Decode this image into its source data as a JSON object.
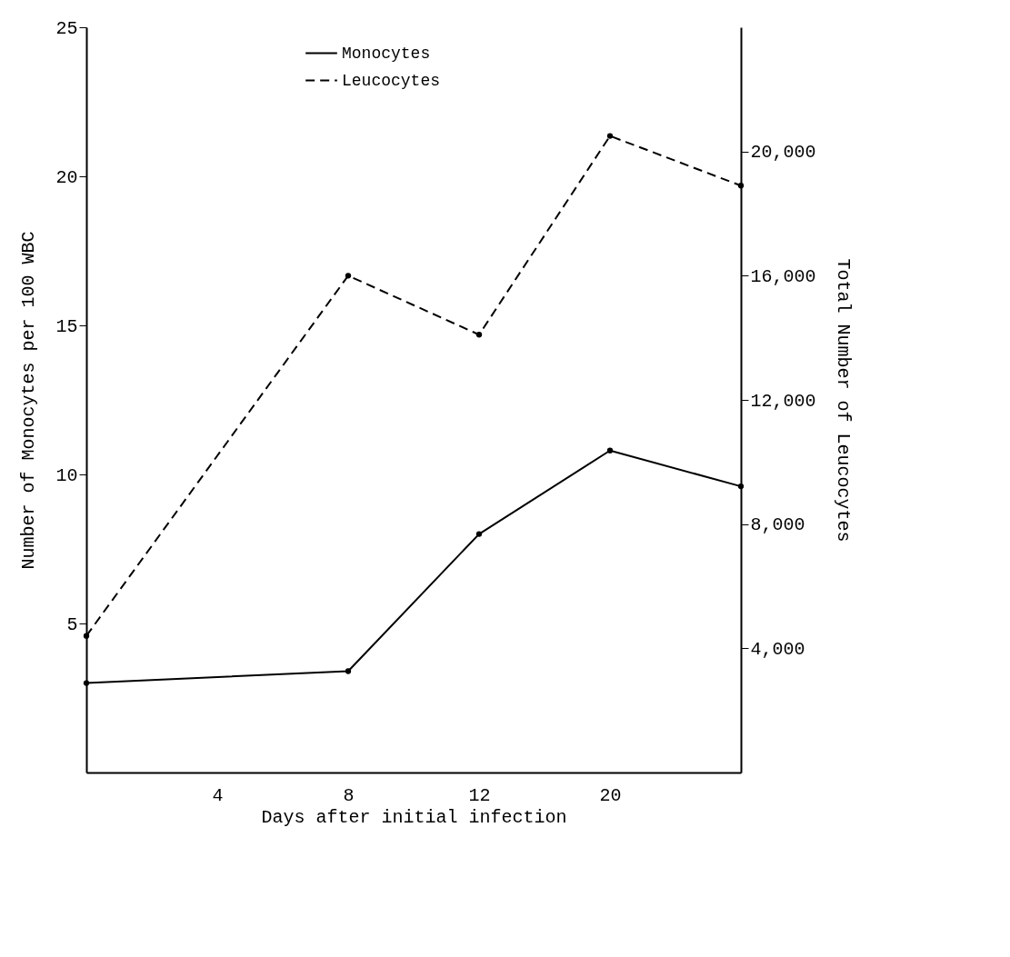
{
  "chart_data": {
    "type": "line",
    "xlabel": "Days after initial infection",
    "ylabel": "Number of Monocytes per 100 WBC",
    "y2label": "Total Number of Leucocytes",
    "categories": [
      null,
      "4",
      "8",
      "12",
      "20",
      null
    ],
    "series": [
      {
        "name": "Monocytes",
        "color": "#000000",
        "line_style": "solid",
        "values": [
          3.0,
          null,
          3.4,
          8.0,
          10.8,
          9.6
        ]
      },
      {
        "name": "Leucocytes",
        "color": "#000000",
        "line_style": "dashed",
        "axis": "y2",
        "values": [
          4400,
          null,
          16000,
          14100,
          20500,
          18900
        ]
      }
    ],
    "ylim": [
      0,
      25
    ],
    "yticks": [
      5,
      10,
      15,
      20,
      25
    ],
    "y2lim": [
      0,
      24000
    ],
    "y2ticks": [
      {
        "value": 4000,
        "label": "4,000"
      },
      {
        "value": 8000,
        "label": "8,000"
      },
      {
        "value": 12000,
        "label": "12,000"
      },
      {
        "value": 16000,
        "label": "16,000"
      },
      {
        "value": 20000,
        "label": "20,000"
      }
    ],
    "marker": "circle",
    "legend": "top",
    "grid": false
  }
}
